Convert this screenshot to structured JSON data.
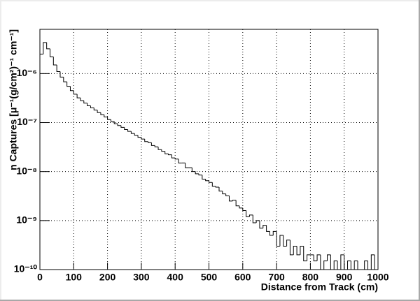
{
  "chart_data": {
    "type": "histogram",
    "xlabel": "Distance from Track (cm)",
    "ylabel": "n Captures [μ⁻¹(g/cm²)⁻¹ cm⁻¹]",
    "bins": [
      0,
      10,
      20,
      30,
      40,
      50,
      60,
      70,
      80,
      90,
      100,
      110,
      120,
      130,
      140,
      150,
      160,
      170,
      180,
      190,
      200,
      210,
      220,
      230,
      240,
      250,
      260,
      270,
      280,
      290,
      300,
      310,
      320,
      330,
      340,
      350,
      360,
      370,
      380,
      390,
      400,
      410,
      420,
      430,
      440,
      450,
      460,
      470,
      480,
      490,
      500,
      510,
      520,
      530,
      540,
      550,
      560,
      570,
      580,
      590,
      600,
      610,
      620,
      630,
      640,
      650,
      660,
      670,
      680,
      690,
      700,
      710,
      720,
      730,
      740,
      750,
      760,
      770,
      780,
      790,
      800,
      810,
      820,
      830,
      840,
      850,
      860,
      870,
      880,
      890,
      900,
      910,
      920,
      930,
      940,
      950,
      960,
      970,
      980,
      990,
      1000
    ],
    "values": [
      2.5e-06,
      4.3e-06,
      3.2e-06,
      2.2e-06,
      1.5e-06,
      1.1e-06,
      8.5e-07,
      6.8e-07,
      5.5e-07,
      4.5e-07,
      3.8e-07,
      3.2e-07,
      2.8e-07,
      2.5e-07,
      2.2e-07,
      2e-07,
      1.8e-07,
      1.6e-07,
      1.45e-07,
      1.3e-07,
      1.15e-07,
      1.05e-07,
      9.5e-08,
      8.7e-08,
      8e-08,
      7.2e-08,
      6.6e-08,
      6e-08,
      5.5e-08,
      5e-08,
      4.6e-08,
      4.1e-08,
      3.9e-08,
      3.4e-08,
      3.2e-08,
      2.8e-08,
      2.6e-08,
      2.3e-08,
      2.2e-08,
      1.9e-08,
      1.8e-08,
      1.5e-08,
      1.5e-08,
      1.2e-08,
      1.2e-08,
      1e-08,
      9e-09,
      8.5e-09,
      7e-09,
      6.5e-09,
      6e-09,
      5e-09,
      4.8e-09,
      4e-09,
      3.5e-09,
      3.2e-09,
      2.5e-09,
      2.6e-09,
      2e-09,
      1.8e-09,
      1.6e-09,
      1.2e-09,
      1.3e-09,
      9e-10,
      1e-09,
      7e-10,
      8e-10,
      6e-10,
      5e-10,
      6e-10,
      3e-10,
      5e-10,
      3e-10,
      4e-10,
      2e-10,
      3e-10,
      2e-10,
      3e-10,
      1.5e-10,
      2e-10,
      2e-10,
      1.5e-10,
      2e-10,
      1e-10,
      1.5e-10,
      2e-10,
      1e-10,
      1.5e-10,
      1e-10,
      2e-10,
      1e-10,
      1.5e-10,
      1e-10,
      1.5e-10,
      1e-10,
      1e-10,
      1.5e-10,
      1e-10,
      2e-10,
      1e-10
    ],
    "color": "#000000",
    "xlim": [
      0,
      1000
    ],
    "xticks": [
      0,
      100,
      200,
      300,
      400,
      500,
      600,
      700,
      800,
      900,
      1000
    ],
    "ylim": [
      1e-10,
      8e-06
    ],
    "log_y": true,
    "yticks": [
      {
        "value": 1e-10,
        "label": "10⁻¹⁰"
      },
      {
        "value": 1e-09,
        "label": "10⁻⁹"
      },
      {
        "value": 1e-08,
        "label": "10⁻⁸"
      },
      {
        "value": 1e-07,
        "label": "10⁻⁷"
      },
      {
        "value": 1e-06,
        "label": "10⁻⁶"
      }
    ],
    "grid": true
  }
}
